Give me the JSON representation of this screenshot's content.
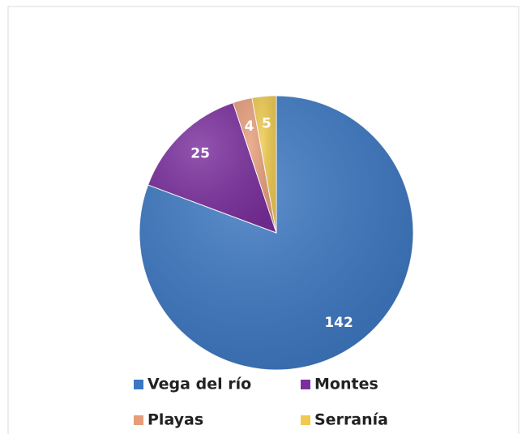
{
  "chart_data": {
    "type": "pie",
    "categories": [
      "Vega del río",
      "Montes",
      "Playas",
      "Serranía"
    ],
    "values": [
      142,
      25,
      4,
      5
    ],
    "colors": [
      "#3b77c2",
      "#7b2f9e",
      "#e79d7a",
      "#efca4e"
    ],
    "legend": "bottom"
  }
}
